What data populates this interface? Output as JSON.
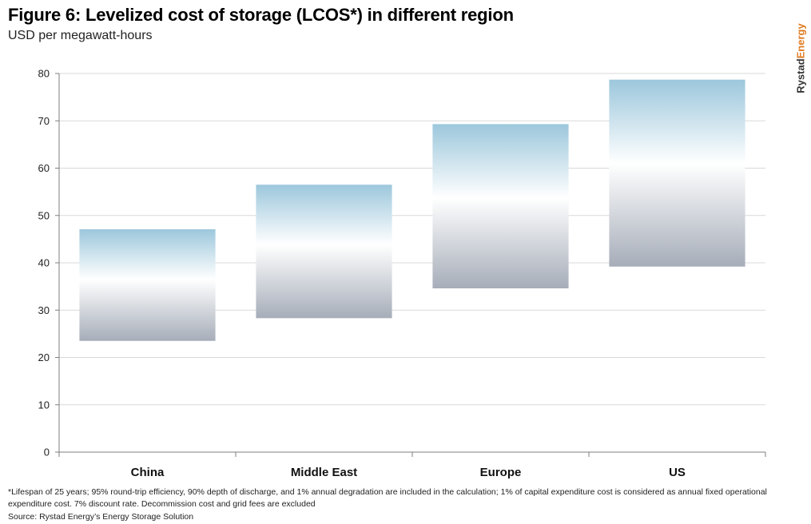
{
  "brand": {
    "part1": "Rystad",
    "part2": "Energy"
  },
  "colors": {
    "grid": "#d9d9d9",
    "axis": "#7f7f7f",
    "bar_top": "#9cc7dc",
    "bar_mid": "#ffffff",
    "bar_bottom": "#a6adb9"
  },
  "chart_data": {
    "type": "floating-bar",
    "title": "Figure 6: Levelized cost of storage (LCOS*) in different region",
    "subtitle": "USD per megawatt-hours",
    "categories": [
      "China",
      "Middle East",
      "Europe",
      "US"
    ],
    "series": [
      {
        "name": "LCOS range",
        "low": [
          23.5,
          28.3,
          34.6,
          39.2
        ],
        "high": [
          47.1,
          56.5,
          69.3,
          78.7
        ]
      }
    ],
    "ylim": [
      0,
      80
    ],
    "yticks": [
      0,
      10,
      20,
      30,
      40,
      50,
      60,
      70,
      80
    ],
    "grid": true,
    "legend": "none"
  },
  "footnote": "*Lifespan of 25 years; 95% round-trip efficiency, 90% depth of discharge, and 1% annual degradation are included in the calculation; 1% of capital expenditure cost is considered as annual fixed operational expenditure cost. 7% discount rate. Decommission cost and grid fees are excluded",
  "source": "Source: Rystad Energy’s Energy Storage Solution"
}
